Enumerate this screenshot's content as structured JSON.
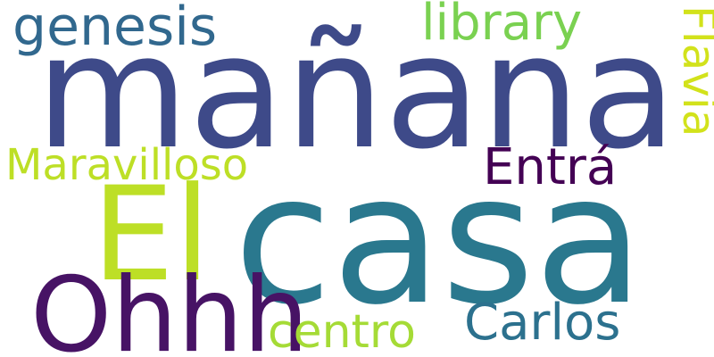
{
  "words": {
    "manana": {
      "text": "mañana",
      "color": "#3e4a89"
    },
    "casa": {
      "text": "casa",
      "color": "#2a788e"
    },
    "el": {
      "text": "El",
      "color": "#bddf26"
    },
    "genesis": {
      "text": "genesis",
      "color": "#31688e"
    },
    "library": {
      "text": "library",
      "color": "#7ad151"
    },
    "flavia": {
      "text": "Flavia",
      "color": "#d2e21b"
    },
    "maravilloso": {
      "text": "Maravilloso",
      "color": "#bddf26"
    },
    "entra": {
      "text": "Entrá",
      "color": "#440154"
    },
    "ohhh": {
      "text": "Ohhh",
      "color": "#471365"
    },
    "centro": {
      "text": "centro",
      "color": "#a5db36"
    },
    "carlos": {
      "text": "Carlos",
      "color": "#2c718e"
    }
  }
}
